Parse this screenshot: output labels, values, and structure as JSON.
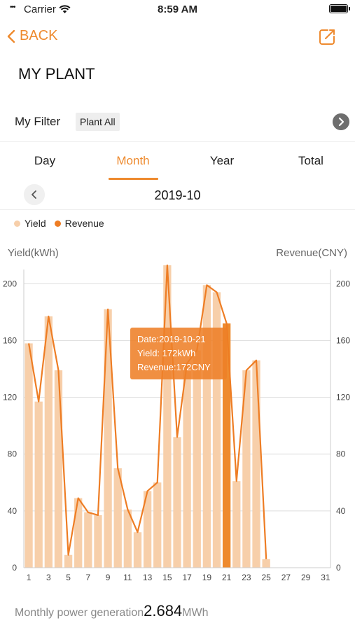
{
  "status": {
    "carrier": "Carrier",
    "time": "8:59 AM"
  },
  "nav": {
    "back_label": "BACK"
  },
  "page_title": "MY PLANT",
  "filter": {
    "label": "My Filter",
    "chip": "Plant All"
  },
  "tabs": [
    {
      "label": "Day",
      "active": false
    },
    {
      "label": "Month",
      "active": true
    },
    {
      "label": "Year",
      "active": false
    },
    {
      "label": "Total",
      "active": false
    }
  ],
  "date": "2019-10",
  "legend": [
    {
      "label": "Yield",
      "color": "#f7cfaa"
    },
    {
      "label": "Revenue",
      "color": "#ee7d24"
    }
  ],
  "tooltip": {
    "line1": "Date:2019-10-21",
    "line2": "Yield: 172kWh",
    "line3": "Revenue:172CNY"
  },
  "footer": {
    "label": "Monthly  power generation",
    "value": "2.684",
    "unit": "MWh"
  },
  "chart_data": {
    "type": "bar",
    "ylabel": "Yield(kWh)",
    "y2label": "Revenue(CNY)",
    "ylim": [
      0,
      210
    ],
    "y2lim": [
      0,
      210
    ],
    "yticks": [
      0,
      40,
      80,
      120,
      160,
      200
    ],
    "xtick_labels": [
      "1",
      "3",
      "5",
      "7",
      "9",
      "11",
      "13",
      "15",
      "17",
      "19",
      "21",
      "23",
      "25",
      "27",
      "29",
      "31"
    ],
    "categories": [
      1,
      2,
      3,
      4,
      5,
      6,
      7,
      8,
      9,
      10,
      11,
      12,
      13,
      14,
      15,
      16,
      17,
      18,
      19,
      20,
      21,
      22,
      23,
      24,
      25,
      26,
      27,
      28,
      29,
      30,
      31
    ],
    "highlight_index": 20,
    "series": [
      {
        "name": "Yield",
        "type": "bar",
        "color": "#f7cfaa",
        "values": [
          158,
          117,
          177,
          139,
          9,
          49,
          39,
          37,
          182,
          70,
          41,
          25,
          54,
          60,
          213,
          92,
          144,
          153,
          199,
          194,
          172,
          61,
          139,
          146,
          6,
          0,
          0,
          0,
          0,
          0,
          0
        ]
      },
      {
        "name": "Revenue",
        "type": "line",
        "color": "#ee7d24",
        "values": [
          158,
          117,
          177,
          139,
          9,
          49,
          39,
          37,
          182,
          70,
          41,
          25,
          54,
          60,
          213,
          92,
          144,
          153,
          199,
          194,
          172,
          61,
          139,
          146,
          6,
          null,
          null,
          null,
          null,
          null,
          null
        ]
      }
    ],
    "grid": true
  }
}
